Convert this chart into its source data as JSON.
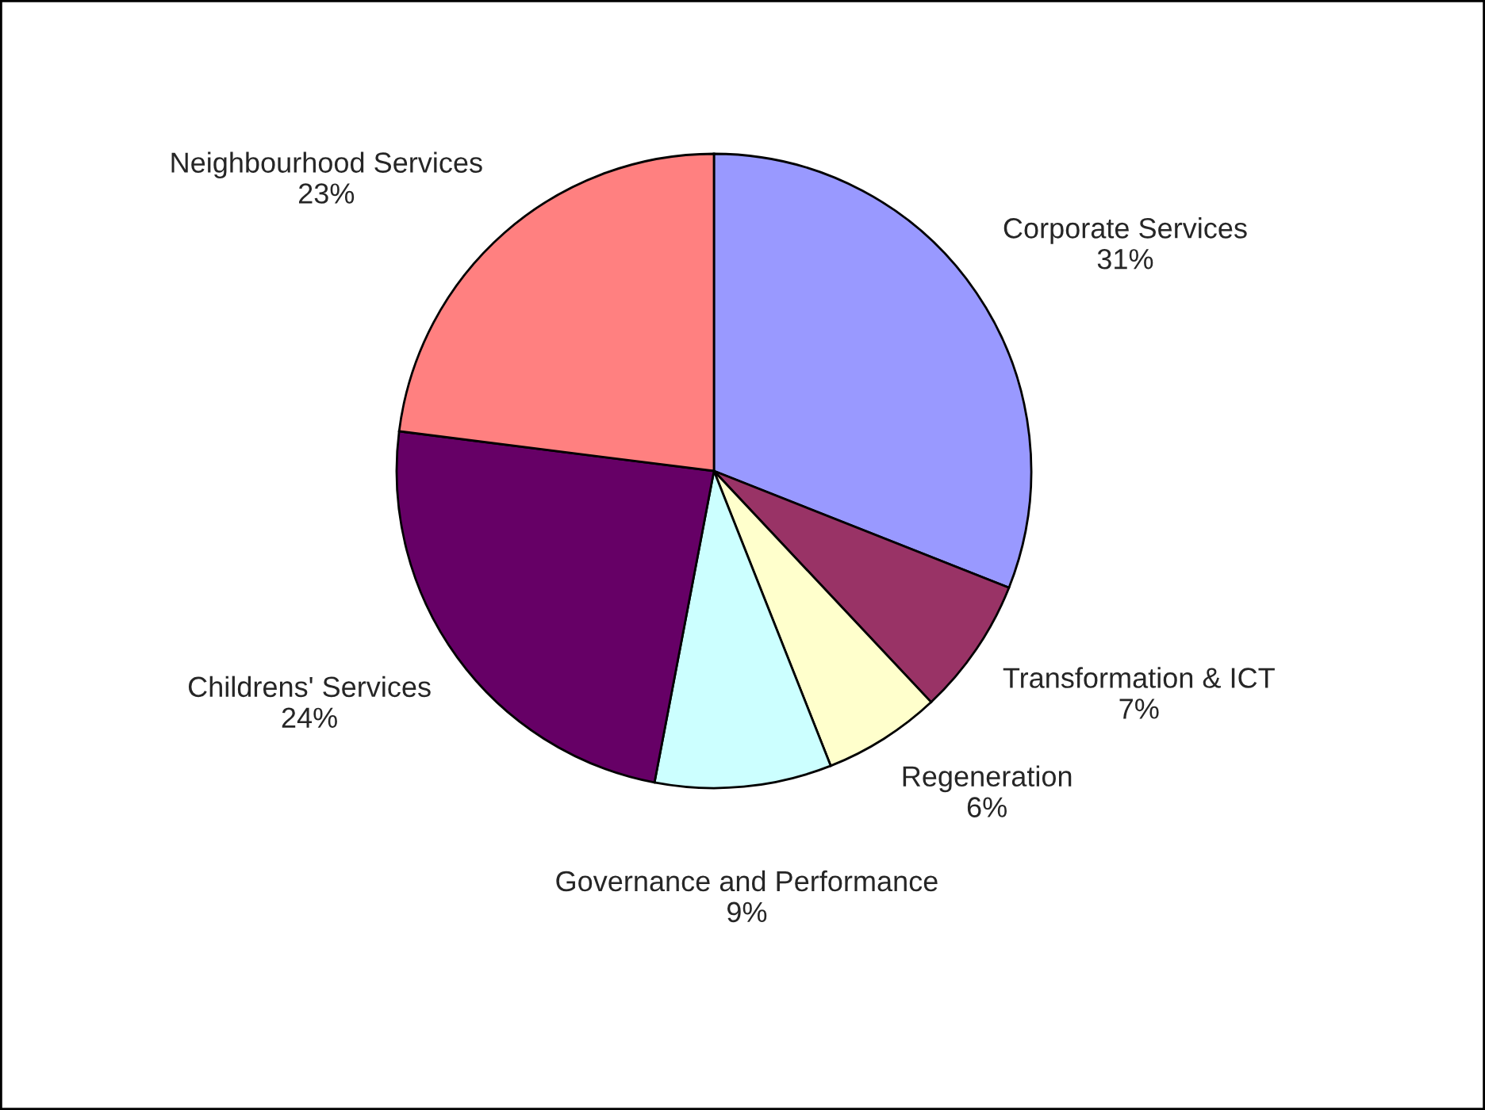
{
  "chart_data": {
    "type": "pie",
    "categories": [
      "Corporate Services",
      "Transformation & ICT",
      "Regeneration",
      "Governance and Performance",
      "Childrens' Services",
      "Neighbourhood Services"
    ],
    "values": [
      31,
      7,
      6,
      9,
      24,
      23
    ],
    "value_labels": [
      "31%",
      "7%",
      "6%",
      "9%",
      "24%",
      "23%"
    ],
    "colors": [
      "#9999ff",
      "#993366",
      "#ffffcc",
      "#ccffff",
      "#660066",
      "#ff8080"
    ],
    "legend": false
  }
}
